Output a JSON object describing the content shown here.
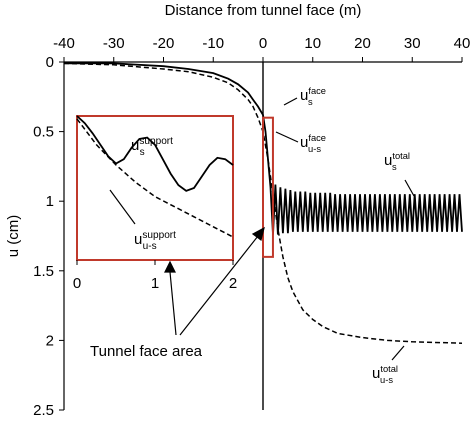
{
  "chart_data": [
    {
      "type": "line",
      "xlabel": "Distance from tunnel face (m)",
      "ylabel": "u (cm)",
      "xlim": [
        -40,
        40
      ],
      "xticks": [
        -40,
        -30,
        -20,
        -10,
        0,
        10,
        20,
        30,
        40
      ],
      "ylim": [
        0,
        2.5
      ],
      "yticks": [
        0,
        0.5,
        1,
        1.5,
        2,
        2.5
      ],
      "y_inverted": true,
      "x_axis_position": "top",
      "grid": false,
      "series": [
        {
          "color": "#000000",
          "dash": false,
          "x": [
            -40,
            -30,
            -20,
            -15,
            -10,
            -7,
            -5,
            -3,
            -2,
            -1,
            0,
            0.5,
            1,
            1.5,
            2,
            2.5,
            3,
            3.5,
            4,
            4.5,
            5,
            5.5,
            6,
            6.5,
            7,
            7.5,
            8,
            8.5,
            9,
            9.5,
            10,
            10.5,
            11,
            11.5,
            12,
            12.5,
            13,
            13.5,
            14,
            14.5,
            15,
            15.5,
            16,
            16.5,
            17,
            17.5,
            18,
            18.5,
            19,
            19.5,
            20,
            20.5,
            21,
            21.5,
            22,
            22.5,
            23,
            23.5,
            24,
            24.5,
            25,
            25.5,
            26,
            26.5,
            27,
            27.5,
            28,
            28.5,
            29,
            29.5,
            30,
            30.5,
            31,
            31.5,
            32,
            32.5,
            33,
            33.5,
            34,
            34.5,
            35,
            35.5,
            36,
            36.5,
            37,
            37.5,
            38,
            38.5,
            39,
            39.5,
            40
          ],
          "values": [
            0.01,
            0.01,
            0.03,
            0.05,
            0.08,
            0.12,
            0.16,
            0.22,
            0.27,
            0.32,
            0.38,
            0.5,
            0.7,
            0.9,
            1.24,
            0.88,
            1.24,
            0.9,
            1.23,
            0.91,
            1.23,
            0.92,
            1.22,
            0.93,
            1.22,
            0.93,
            1.22,
            0.93,
            1.22,
            0.94,
            1.22,
            0.94,
            1.22,
            0.94,
            1.22,
            0.94,
            1.22,
            0.94,
            1.22,
            0.95,
            1.22,
            0.95,
            1.22,
            0.95,
            1.22,
            0.95,
            1.22,
            0.95,
            1.22,
            0.95,
            1.22,
            0.95,
            1.22,
            0.95,
            1.22,
            0.95,
            1.22,
            0.95,
            1.22,
            0.95,
            1.22,
            0.95,
            1.22,
            0.95,
            1.22,
            0.95,
            1.22,
            0.95,
            1.22,
            0.95,
            1.22,
            0.95,
            1.22,
            0.95,
            1.22,
            0.95,
            1.22,
            0.95,
            1.22,
            0.95,
            1.22,
            0.95,
            1.22,
            0.95,
            1.22,
            0.95,
            1.22,
            0.95,
            1.22,
            0.95,
            1.22
          ]
        },
        {
          "color": "#000000",
          "dash": true,
          "x": [
            -40,
            -30,
            -20,
            -15,
            -10,
            -7,
            -5,
            -3,
            -2,
            -1,
            0,
            1,
            2,
            3,
            4,
            5,
            6,
            8,
            10,
            12,
            15,
            20,
            25,
            30,
            40
          ],
          "values": [
            0.01,
            0.02,
            0.05,
            0.07,
            0.11,
            0.15,
            0.2,
            0.27,
            0.32,
            0.4,
            0.5,
            0.7,
            0.95,
            1.2,
            1.4,
            1.55,
            1.65,
            1.78,
            1.85,
            1.9,
            1.95,
            1.98,
            2.0,
            2.01,
            2.02
          ]
        }
      ],
      "annotations": [
        {
          "text": "u",
          "sub": "s",
          "sup": "face"
        },
        {
          "text": "u",
          "sub": "u-s",
          "sup": "face"
        },
        {
          "text": "u",
          "sub": "s",
          "sup": "total"
        },
        {
          "text": "u",
          "sub": "u-s",
          "sup": "total"
        },
        {
          "text": "Tunnel face area"
        }
      ]
    },
    {
      "type": "line",
      "xlim": [
        0,
        2
      ],
      "xticks": [
        0,
        1,
        2
      ],
      "ylim": [
        0.4,
        1.4
      ],
      "y_inverted": true,
      "frame_color": "#c0392b",
      "series": [
        {
          "color": "#000000",
          "dash": false,
          "x": [
            0,
            0.1,
            0.2,
            0.3,
            0.4,
            0.5,
            0.6,
            0.7,
            0.8,
            0.9,
            1,
            1.1,
            1.2,
            1.3,
            1.4,
            1.5,
            1.6,
            1.7,
            1.8,
            1.9,
            2
          ],
          "values": [
            0.4,
            0.45,
            0.52,
            0.6,
            0.68,
            0.73,
            0.7,
            0.62,
            0.56,
            0.55,
            0.6,
            0.7,
            0.8,
            0.88,
            0.92,
            0.9,
            0.82,
            0.74,
            0.69,
            0.7,
            0.74
          ]
        },
        {
          "color": "#000000",
          "dash": true,
          "x": [
            0,
            0.25,
            0.5,
            0.75,
            1,
            1.25,
            1.5,
            1.75,
            2
          ],
          "values": [
            0.42,
            0.6,
            0.74,
            0.86,
            0.96,
            1.03,
            1.1,
            1.17,
            1.24
          ]
        }
      ],
      "annotations": [
        {
          "text": "u",
          "sub": "s",
          "sup": "support"
        },
        {
          "text": "u",
          "sub": "u-s",
          "sup": "support"
        }
      ]
    }
  ]
}
